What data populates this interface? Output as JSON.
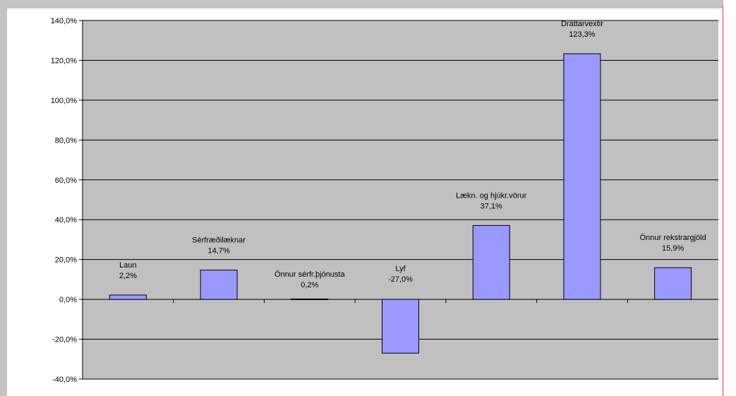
{
  "chart_data": {
    "type": "bar",
    "title": "",
    "xlabel": "",
    "ylabel": "",
    "ylim": [
      -40,
      140
    ],
    "yticks": [
      "-40,0%",
      "-20,0%",
      "0,0%",
      "20,0%",
      "40,0%",
      "60,0%",
      "80,0%",
      "100,0%",
      "120,0%",
      "140,0%"
    ],
    "ytick_values": [
      -40,
      -20,
      0,
      20,
      40,
      60,
      80,
      100,
      120,
      140
    ],
    "categories": [
      "Laun",
      "Sérfræðilæknar",
      "Önnur sérfr.þjónusta",
      "Lyf",
      "Lækn. og hjúkr.vörur",
      "Dráttarvextir",
      "Önnur rekstrargjöld"
    ],
    "values": [
      2.2,
      14.7,
      0.2,
      -27.0,
      37.1,
      123.3,
      15.9
    ],
    "value_labels": [
      "2,2%",
      "14,7%",
      "0,2%",
      "-27,0%",
      "37,1%",
      "123,3%",
      "15,9%"
    ],
    "grid": true,
    "legend": "none",
    "colors": {
      "plot_bg": "#c0c0c0",
      "bar_fill": "#9999ff",
      "bar_stroke": "#000000",
      "gridline": "#000000",
      "frame_bg": "#c4c4c4",
      "accent_line": "#e04040"
    }
  }
}
